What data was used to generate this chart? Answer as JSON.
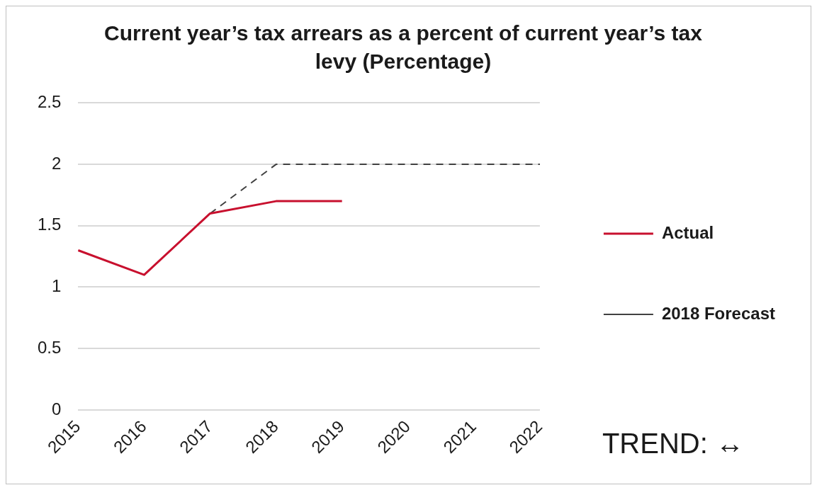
{
  "chart_data": {
    "type": "line",
    "title": "Current year’s tax arrears as a percent of current year’s tax levy (Percentage)",
    "categories": [
      "2015",
      "2016",
      "2017",
      "2018",
      "2019",
      "2020",
      "2021",
      "2022"
    ],
    "series": [
      {
        "name": "Actual",
        "color": "#c8102e",
        "line_style": "solid",
        "values": [
          1.3,
          1.1,
          1.6,
          1.7,
          1.7,
          null,
          null,
          null
        ]
      },
      {
        "name": "2018 Forecast",
        "color": "#404040",
        "line_style": "dashed",
        "values": [
          null,
          null,
          1.6,
          2,
          2,
          2,
          2,
          2
        ]
      }
    ],
    "ylim": [
      0,
      2.5
    ],
    "yticks": [
      0,
      0.5,
      1,
      1.5,
      2,
      2.5
    ],
    "grid": "y",
    "legend": "right",
    "marker": "none",
    "annotations": [
      "TREND: ↔"
    ]
  }
}
